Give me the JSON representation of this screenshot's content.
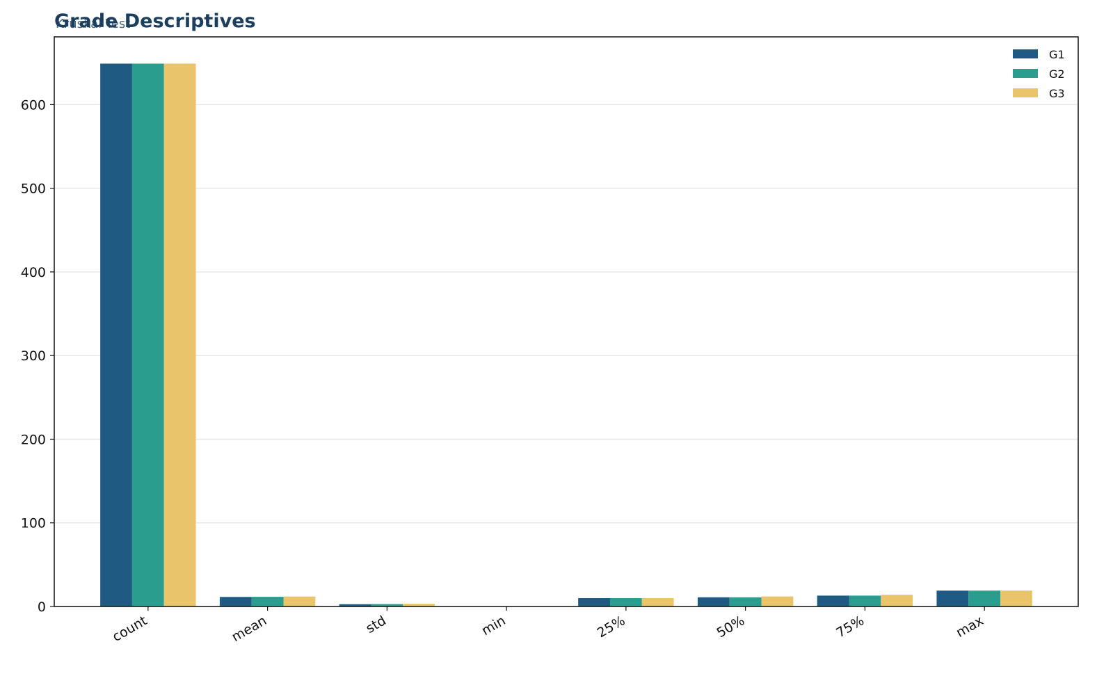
{
  "chart_data": {
    "type": "bar",
    "title": "Grade Descriptives",
    "subtitle": "Kruskal Test",
    "categories": [
      "count",
      "mean",
      "std",
      "min",
      "25%",
      "50%",
      "75%",
      "max"
    ],
    "series": [
      {
        "name": "G1",
        "color": "#1f5a82",
        "values": [
          649,
          11.4,
          2.75,
          0,
          10,
          11,
          13,
          19
        ]
      },
      {
        "name": "G2",
        "color": "#2a9d8f",
        "values": [
          649,
          11.57,
          2.91,
          0,
          10,
          11,
          13,
          19
        ]
      },
      {
        "name": "G3",
        "color": "#e9c46a",
        "values": [
          649,
          11.91,
          3.23,
          0,
          10,
          12,
          14,
          19
        ]
      }
    ],
    "ylim": [
      0,
      681
    ],
    "yticks": [
      0,
      100,
      200,
      300,
      400,
      500,
      600
    ],
    "grid": true,
    "legend": "upper right"
  }
}
